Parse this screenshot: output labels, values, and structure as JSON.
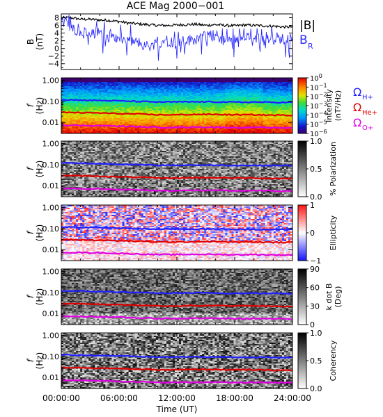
{
  "title": "ACE Mag 2000−001",
  "x_axis": {
    "label": "Time (UT)",
    "ticks": [
      "00:00:00",
      "06:00:00",
      "12:00:00",
      "18:00:00",
      "24:00:00"
    ],
    "range_hours": [
      0,
      24
    ]
  },
  "legends": {
    "field": [
      {
        "label": "|B|",
        "color": "#000000"
      },
      {
        "label": "B",
        "sub": "R",
        "color": "#2b2bff"
      }
    ],
    "gyro": [
      {
        "label": "Ω",
        "sub": "H+",
        "color": "#1f1fff"
      },
      {
        "label": "Ω",
        "sub": "He+",
        "color": "#e00000"
      },
      {
        "label": "Ω",
        "sub": "O+",
        "color": "#e000e0"
      }
    ]
  },
  "chart_data": [
    {
      "type": "line",
      "name": "field",
      "ylabel": "B",
      "yunit": "(nT)",
      "yticks": [
        "8",
        "6",
        "4",
        "2",
        "0",
        "−2",
        "−4"
      ],
      "ylim": [
        -5.5,
        9
      ],
      "x_hours": [
        0,
        1,
        2,
        3,
        4,
        5,
        6,
        7,
        8,
        9,
        10,
        11,
        12,
        13,
        14,
        15,
        16,
        17,
        18,
        19,
        20,
        21,
        22,
        23,
        24
      ],
      "series": [
        {
          "label": "|B|",
          "color": "#000000",
          "values": [
            8.0,
            8.0,
            7.6,
            7.6,
            7.4,
            7.3,
            7.0,
            6.6,
            6.4,
            6.2,
            6.0,
            6.0,
            6.1,
            6.2,
            6.3,
            6.0,
            6.2,
            6.0,
            5.9,
            6.1,
            6.0,
            5.9,
            5.8,
            5.6,
            5.6
          ]
        },
        {
          "label": "B_R",
          "color": "#1f1fff",
          "values": [
            7.5,
            5.5,
            4.0,
            3.5,
            4.0,
            3.0,
            2.5,
            2.0,
            1.5,
            0.5,
            1.5,
            2.0,
            1.5,
            2.0,
            2.5,
            3.0,
            3.5,
            2.0,
            2.5,
            3.0,
            2.5,
            2.5,
            3.0,
            2.5,
            3.5
          ]
        }
      ]
    },
    {
      "type": "heatmap",
      "name": "intensity",
      "ylabel": "f",
      "yunit": "(Hz)",
      "ylim": [
        0.003,
        1.3
      ],
      "yticks": [
        "1.00",
        "0.10",
        "0.01"
      ],
      "colorbar": {
        "label_lines": [
          "Intensity",
          "(nT²/Hz)"
        ],
        "colormap": "rainbow",
        "scale": "log",
        "range": [
          1e-06,
          1
        ],
        "ticks": [
          {
            "m": "10",
            "e": "0"
          },
          {
            "m": "10",
            "e": "−1"
          },
          {
            "m": "10",
            "e": "−2"
          },
          {
            "m": "10",
            "e": "−3"
          },
          {
            "m": "10",
            "e": "−4"
          },
          {
            "m": "10",
            "e": "−5"
          },
          {
            "m": "10",
            "e": "−6"
          }
        ]
      }
    },
    {
      "type": "heatmap",
      "name": "polarization",
      "ylabel": "f",
      "yunit": "(Hz)",
      "ylim": [
        0.003,
        1.3
      ],
      "yticks": [
        "1.00",
        "0.10",
        "0.01"
      ],
      "colorbar": {
        "label_lines": [
          "% Polarization"
        ],
        "colormap": "gray",
        "range": [
          0,
          1.0
        ],
        "ticks": [
          {
            "m": "1.0"
          },
          {
            "m": "0.5"
          },
          {
            "m": "0.0"
          }
        ]
      }
    },
    {
      "type": "heatmap",
      "name": "ellipticity",
      "ylabel": "f",
      "yunit": "(Hz)",
      "ylim": [
        0.003,
        1.3
      ],
      "yticks": [
        "1.00",
        "0.10",
        "0.01"
      ],
      "colorbar": {
        "label_lines": [
          "Ellipticity"
        ],
        "colormap": "bwr",
        "range": [
          -1,
          1
        ],
        "ticks": [
          {
            "m": "1"
          },
          {
            "m": "0"
          },
          {
            "m": "−1"
          }
        ]
      }
    },
    {
      "type": "heatmap",
      "name": "kdotb",
      "ylabel": "f",
      "yunit": "(Hz)",
      "ylim": [
        0.003,
        1.3
      ],
      "yticks": [
        "1.00",
        "0.10",
        "0.01"
      ],
      "colorbar": {
        "label_lines": [
          "k dot B",
          "(Deg)"
        ],
        "colormap": "gray",
        "range": [
          0,
          90
        ],
        "ticks": [
          {
            "m": "90"
          },
          {
            "m": "60"
          },
          {
            "m": "30"
          },
          {
            "m": "0"
          }
        ]
      }
    },
    {
      "type": "heatmap",
      "name": "coherency",
      "ylabel": "f",
      "yunit": "(Hz)",
      "ylim": [
        0.003,
        1.3
      ],
      "yticks": [
        "1.00",
        "0.10",
        "0.01"
      ],
      "colorbar": {
        "label_lines": [
          "Coherency"
        ],
        "colormap": "gray",
        "range": [
          0,
          1.0
        ],
        "ticks": [
          {
            "m": "1.0"
          },
          {
            "m": "0.5"
          },
          {
            "m": "0.0"
          }
        ]
      }
    }
  ],
  "gyrofrequency_lines": {
    "x_hours": [
      0,
      2,
      4,
      6,
      8,
      10,
      12,
      14,
      16,
      18,
      20,
      22,
      24
    ],
    "series": [
      {
        "name": "ΩH+",
        "color": "#1f1fff",
        "values_hz": [
          0.12,
          0.115,
          0.11,
          0.105,
          0.098,
          0.093,
          0.093,
          0.095,
          0.094,
          0.091,
          0.092,
          0.089,
          0.09
        ]
      },
      {
        "name": "ΩHe+",
        "color": "#e00000",
        "values_hz": [
          0.03,
          0.029,
          0.028,
          0.026,
          0.025,
          0.023,
          0.023,
          0.024,
          0.024,
          0.023,
          0.023,
          0.022,
          0.022
        ]
      },
      {
        "name": "ΩO+",
        "color": "#e000e0",
        "values_hz": [
          0.0075,
          0.0072,
          0.007,
          0.0066,
          0.0062,
          0.0058,
          0.0058,
          0.006,
          0.0059,
          0.0057,
          0.0058,
          0.0056,
          0.0056
        ]
      }
    ]
  }
}
